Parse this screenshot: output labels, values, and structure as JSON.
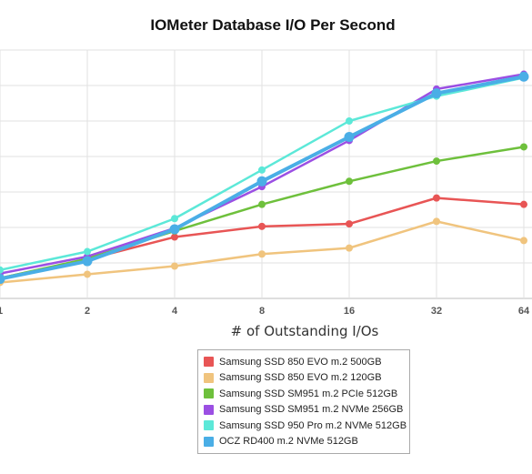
{
  "chart_data": {
    "type": "line",
    "title": "IOMeter Database I/O Per Second",
    "xlabel": "# of Outstanding I/Os",
    "ylabel": "",
    "x": [
      "1",
      "2",
      "4",
      "8",
      "16",
      "32",
      "64"
    ],
    "ylim": [
      0,
      700
    ],
    "grid": true,
    "legend_position": "bottom",
    "series": [
      {
        "name": "Samsung SSD 850 EVO m.2 500GB",
        "color": "#e85555",
        "values": [
          57,
          110,
          173,
          203,
          210,
          283,
          265
        ]
      },
      {
        "name": "Samsung SSD 850 EVO m.2 120GB",
        "color": "#f0c47e",
        "values": [
          45,
          68,
          91,
          125,
          142,
          217,
          163
        ]
      },
      {
        "name": "Samsung SSD SM951 m.2 PCIe 512GB",
        "color": "#6ec03c",
        "values": [
          57,
          112,
          190,
          265,
          330,
          387,
          427
        ]
      },
      {
        "name": "Samsung SSD SM951 m.2 NVMe 256GB",
        "color": "#9b4fe3",
        "values": [
          70,
          118,
          198,
          315,
          445,
          590,
          632
        ]
      },
      {
        "name": "Samsung SSD 950 Pro m.2 NVMe 512GB",
        "color": "#5ce8d8",
        "values": [
          80,
          132,
          225,
          362,
          500,
          570,
          622
        ]
      },
      {
        "name": "OCZ RD400 m.2 NVMe 512GB",
        "color": "#4aaee6",
        "values": [
          55,
          105,
          195,
          330,
          455,
          578,
          625
        ]
      }
    ]
  }
}
